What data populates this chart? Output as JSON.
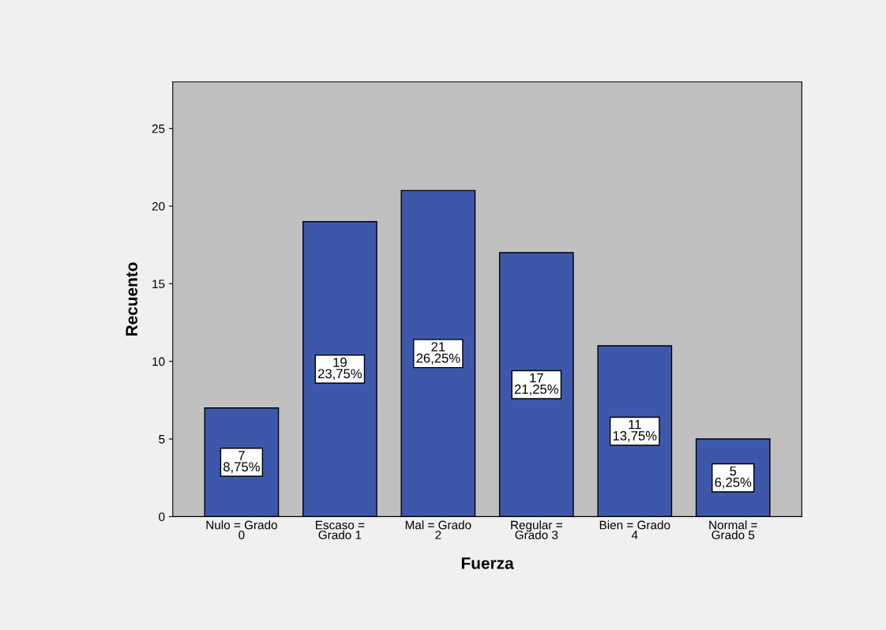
{
  "chart_data": {
    "type": "bar",
    "xlabel": "Fuerza",
    "ylabel": "Recuento",
    "categories": [
      "Nulo = Grado\n0",
      "Escaso =\nGrado 1",
      "Mal = Grado\n2",
      "Regular =\nGrado 3",
      "Bien = Grado\n4",
      "Normal =\nGrado 5"
    ],
    "values": [
      7,
      19,
      21,
      17,
      11,
      5
    ],
    "value_labels": [
      "7\n8,75%",
      "19\n23,75%",
      "21\n26,25%",
      "17\n21,25%",
      "11\n13,75%",
      "5\n6,25%"
    ],
    "color": "#3d58ab",
    "ylim": [
      0,
      28
    ],
    "yticks": [
      0,
      5,
      10,
      15,
      20,
      25
    ],
    "grid": false,
    "legend": false
  }
}
